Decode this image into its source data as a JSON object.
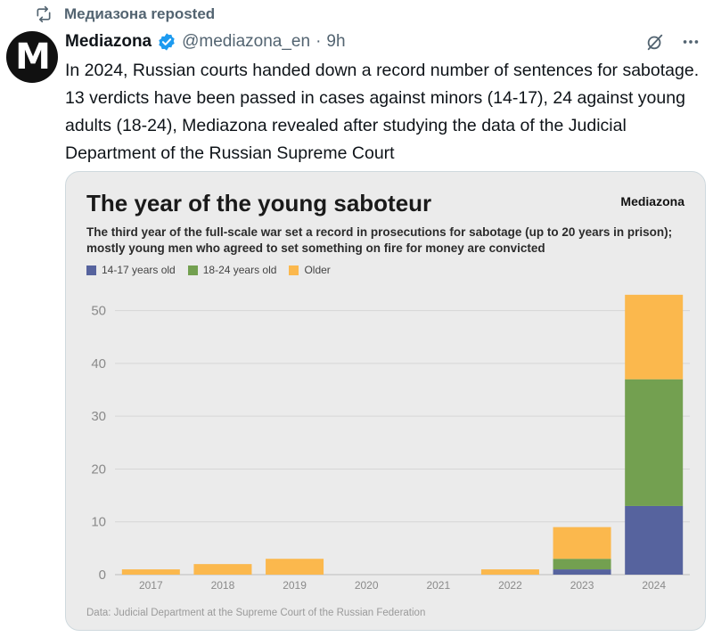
{
  "repost": {
    "label": "Медиазона reposted",
    "icon": "repost-icon"
  },
  "tweet": {
    "avatar_letter": "M",
    "display_name": "Mediazona",
    "handle": "@mediazona_en",
    "separator": "·",
    "time": "9h",
    "text": "In 2024, Russian courts handed down a record number of sentences for sabotage. 13 verdicts have been passed in cases against minors (14-17), 24 against young adults (18-24), Mediazona revealed after studying the data of the Judicial Department of the Russian Supreme Court"
  },
  "card": {
    "title": "The year of the young saboteur",
    "brand": "Mediazona",
    "subtitle": "The third year of the full-scale war set a record in prosecutions for sabotage (up to 20 years in prison); mostly young men who agreed to set something on fire for money are convicted",
    "source": "Data: Judicial Department at the Supreme Court of the Russian Federation"
  },
  "colors": {
    "accent": "#1d9bf0",
    "minors": "#56639e",
    "young": "#73a050",
    "older": "#fbb84d"
  },
  "chart_data": {
    "type": "bar",
    "stacked": true,
    "categories": [
      "2017",
      "2018",
      "2019",
      "2020",
      "2021",
      "2022",
      "2023",
      "2024"
    ],
    "series": [
      {
        "name": "14-17 years old",
        "color": "#56639e",
        "values": [
          0,
          0,
          0,
          0,
          0,
          0,
          1,
          13
        ]
      },
      {
        "name": "18-24 years old",
        "color": "#73a050",
        "values": [
          0,
          0,
          0,
          0,
          0,
          0,
          2,
          24
        ]
      },
      {
        "name": "Older",
        "color": "#fbb84d",
        "values": [
          1,
          2,
          3,
          0,
          0,
          1,
          6,
          16
        ]
      }
    ],
    "yticks": [
      "0",
      "10",
      "20",
      "30",
      "40",
      "50"
    ],
    "ylim": [
      0,
      55
    ],
    "grid": true,
    "legend_position": "top-left"
  }
}
